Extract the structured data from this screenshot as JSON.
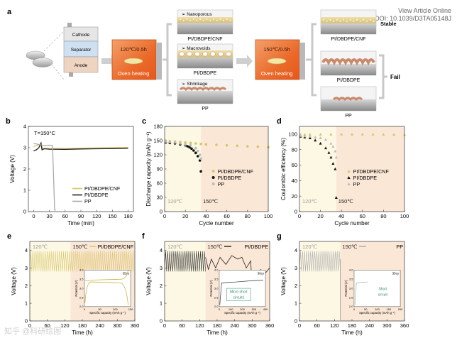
{
  "header": {
    "view_article": "View Article Online",
    "doi": "DOI: 10.1039/D3TA05148J"
  },
  "watermark": "知乎 @科研绘图",
  "panel_a": {
    "letter": "a",
    "cell_layers": [
      "Cathode",
      "Separator",
      "Anode"
    ],
    "oven1": {
      "temp": "120℃/0.5h",
      "label": "Oven heating"
    },
    "oven2": {
      "temp": "150℃/0.5h",
      "label": "Oven heating"
    },
    "mid_cards": [
      {
        "tag": "Nanoporous",
        "caption": "PI/DBDPE/CNF"
      },
      {
        "tag": "Macrovoids",
        "caption": "PI/DBDPE"
      },
      {
        "tag": "Shrinkage",
        "caption": "PP"
      }
    ],
    "right_cards": [
      {
        "caption": "PI/DBDPE/CNF",
        "status": "Stable"
      },
      {
        "caption": "PI/DBDPE",
        "status": ""
      },
      {
        "caption": "PP",
        "status": ""
      }
    ],
    "fail_label": "Fail"
  },
  "chart_data": [
    {
      "id": "b",
      "letter": "b",
      "type": "line",
      "annotation": "T=150°C",
      "xlabel": "Time (min)",
      "ylabel": "Voltage (V)",
      "xlim": [
        -10,
        190
      ],
      "ylim": [
        0,
        4
      ],
      "xticks": [
        0,
        30,
        60,
        90,
        120,
        150,
        180
      ],
      "yticks": [
        0,
        1,
        2,
        3,
        4
      ],
      "series": [
        {
          "name": "PI/DBDPE/CNF",
          "color": "#d8c56a",
          "x": [
            0,
            5,
            10,
            14,
            18,
            22,
            30,
            60,
            90,
            120,
            150,
            180
          ],
          "y": [
            3.05,
            3.1,
            3.12,
            3.08,
            2.95,
            2.98,
            2.97,
            2.96,
            2.98,
            2.99,
            3.0,
            3.01
          ]
        },
        {
          "name": "PI/DBDPE",
          "color": "#222222",
          "x": [
            0,
            5,
            10,
            14,
            16,
            20,
            30,
            60,
            90,
            120,
            150,
            180
          ],
          "y": [
            2.85,
            2.9,
            3.0,
            3.22,
            2.9,
            2.95,
            2.93,
            2.92,
            2.94,
            2.95,
            2.96,
            2.97
          ]
        },
        {
          "name": "PP",
          "color": "#aaaaaa",
          "x": [
            0,
            10,
            20,
            30,
            36,
            38,
            40,
            42
          ],
          "y": [
            3.2,
            3.15,
            3.1,
            3.12,
            3.1,
            1.6,
            0.1,
            0.05
          ]
        }
      ]
    },
    {
      "id": "c",
      "letter": "c",
      "type": "scatter",
      "xlabel": "Cycle number",
      "ylabel": "Discharge capacity (mAh g⁻¹)",
      "xlim": [
        0,
        100
      ],
      "ylim": [
        0,
        180
      ],
      "xticks": [
        0,
        20,
        40,
        60,
        80,
        100
      ],
      "yticks": [
        0,
        30,
        60,
        90,
        120,
        150,
        180
      ],
      "regions": [
        {
          "label": "120℃",
          "from": 0,
          "to": 35
        },
        {
          "label": "150℃",
          "from": 35,
          "to": 100
        }
      ],
      "series": [
        {
          "name": "PI/DBDPE/CNF",
          "color": "#d8c56a",
          "marker": "circle",
          "x": [
            1,
            5,
            10,
            15,
            20,
            25,
            30,
            35,
            40,
            50,
            60,
            70,
            80,
            90,
            100
          ],
          "y": [
            150,
            149,
            148,
            147,
            146,
            145,
            144,
            143,
            142,
            141,
            140,
            139,
            138,
            137,
            136
          ]
        },
        {
          "name": "PI/DBDPE",
          "color": "#111111",
          "marker": "circle",
          "x": [
            1,
            5,
            10,
            15,
            20,
            22,
            24,
            26,
            28,
            30,
            32,
            34,
            35
          ],
          "y": [
            146,
            145,
            144,
            142,
            140,
            138,
            136,
            133,
            129,
            124,
            117,
            108,
            85
          ]
        },
        {
          "name": "PP",
          "color": "#bbbbbb",
          "marker": "circle",
          "x": [
            1,
            5,
            10,
            15,
            20,
            25,
            30,
            32,
            34,
            35
          ],
          "y": [
            148,
            147,
            146,
            144,
            142,
            140,
            134,
            128,
            120,
            112
          ]
        }
      ]
    },
    {
      "id": "d",
      "letter": "d",
      "type": "scatter",
      "xlabel": "Cycle number",
      "ylabel": "Coulombic efficiency (%)",
      "xlim": [
        0,
        100
      ],
      "ylim": [
        0,
        110
      ],
      "xticks": [
        0,
        20,
        40,
        60,
        80,
        100
      ],
      "yticks": [
        0,
        20,
        40,
        60,
        80,
        100
      ],
      "regions": [
        {
          "label": "120℃",
          "from": 0,
          "to": 35
        },
        {
          "label": "150℃",
          "from": 35,
          "to": 100
        }
      ],
      "series": [
        {
          "name": "PI/DBDPE/CNF",
          "color": "#d8c56a",
          "marker": "triangle",
          "x": [
            1,
            5,
            10,
            20,
            30,
            40,
            50,
            60,
            70,
            80,
            90,
            100
          ],
          "y": [
            99,
            99.5,
            99.6,
            99.7,
            99.8,
            99.8,
            99.8,
            99.8,
            99.7,
            99.6,
            99.5,
            99.3
          ]
        },
        {
          "name": "PI/DBDPE",
          "color": "#111111",
          "marker": "triangle",
          "x": [
            1,
            5,
            10,
            15,
            20,
            25,
            28,
            30,
            32,
            34,
            35
          ],
          "y": [
            97,
            96,
            95,
            92,
            88,
            82,
            76,
            70,
            62,
            55,
            18
          ]
        },
        {
          "name": "PP",
          "color": "#bbbbbb",
          "marker": "triangle",
          "x": [
            1,
            5,
            10,
            15,
            20,
            25,
            30,
            32,
            34,
            35
          ],
          "y": [
            98,
            97.5,
            97,
            96,
            95,
            93,
            88,
            84,
            78,
            70
          ]
        }
      ]
    },
    {
      "id": "e",
      "letter": "e",
      "type": "line",
      "legend": "PI/DBDPE/CNF",
      "color": "#d8c56a",
      "xlabel": "Time (h)",
      "ylabel": "Voltage (V)",
      "xlim": [
        0,
        360
      ],
      "ylim": [
        0,
        4.5
      ],
      "xticks": [
        0,
        60,
        120,
        180,
        240,
        300,
        360
      ],
      "yticks": [
        0,
        1,
        2,
        3,
        4
      ],
      "regions": [
        {
          "label": "120℃",
          "from": 0,
          "to": 140
        },
        {
          "label": "150℃",
          "from": 140,
          "to": 360
        }
      ],
      "cycling": {
        "low": 2.8,
        "high": 3.95,
        "period_h": 7
      },
      "inset": {
        "xlabel": "Specific capacity (mAh g⁻¹)",
        "ylabel": "Potential (V)",
        "tag": "35cy",
        "xticks": [
          0,
          50,
          100,
          150
        ],
        "yticks": [
          2.0,
          2.5,
          3.0,
          3.5,
          4.0
        ]
      }
    },
    {
      "id": "f",
      "letter": "f",
      "type": "line",
      "legend": "PI/DBDPE",
      "color": "#222222",
      "xlabel": "Time (h)",
      "ylabel": "Voltage (V)",
      "xlim": [
        0,
        360
      ],
      "ylim": [
        0,
        4.5
      ],
      "xticks": [
        0,
        60,
        120,
        180,
        240,
        300,
        360
      ],
      "yticks": [
        0,
        1,
        2,
        3,
        4
      ],
      "regions": [
        {
          "label": "120℃",
          "from": 0,
          "to": 140
        },
        {
          "label": "150℃",
          "from": 140,
          "to": 360
        }
      ],
      "cycling": {
        "low": 2.8,
        "high": 3.95,
        "period_h": 7
      },
      "after": {
        "x": [
          140,
          150,
          160,
          175,
          190,
          210,
          230,
          250,
          265,
          280,
          295,
          300,
          310,
          330,
          345,
          360
        ],
        "y": [
          3.6,
          2.9,
          3.5,
          3.0,
          3.6,
          3.2,
          3.7,
          3.5,
          3.6,
          3.0,
          3.4,
          1.9,
          2.8,
          2.9,
          2.7,
          3.0
        ]
      },
      "inset": {
        "xlabel": "Specific capacity (mAh g⁻¹)",
        "ylabel": "Potential (V)",
        "tag": "36cy",
        "annotation": "Micro short circuits",
        "xticks": [
          0,
          100,
          200,
          300,
          400
        ],
        "yticks": [
          2.0,
          2.5,
          3.0,
          3.5,
          4.0
        ]
      }
    },
    {
      "id": "g",
      "letter": "g",
      "type": "line",
      "legend": "PP",
      "color": "#aaaaaa",
      "xlabel": "Time (h)",
      "ylabel": "Voltage (V)",
      "xlim": [
        0,
        360
      ],
      "ylim": [
        0,
        4.5
      ],
      "xticks": [
        0,
        60,
        120,
        180,
        240,
        300,
        360
      ],
      "yticks": [
        0,
        1,
        2,
        3,
        4
      ],
      "regions": [
        {
          "label": "120℃",
          "from": 0,
          "to": 140
        },
        {
          "label": "150℃",
          "from": 140,
          "to": 360
        }
      ],
      "cycling": {
        "low": 2.8,
        "high": 3.95,
        "period_h": 7
      },
      "drop_at": 140,
      "inset": {
        "xlabel": "Specific capacity (mAh g⁻¹)",
        "ylabel": "Potential (V)",
        "tag": "35cy",
        "annotation": "Short circuit",
        "xticks": [
          0,
          50,
          100,
          150,
          200
        ],
        "yticks": [
          2.0,
          2.5,
          3.0,
          3.5,
          4.0
        ]
      }
    }
  ],
  "colors": {
    "region_120": "#fdf8e4",
    "region_150": "#fbe7d6",
    "oven": "#f07a38",
    "bracket": "#c8c8c8"
  }
}
